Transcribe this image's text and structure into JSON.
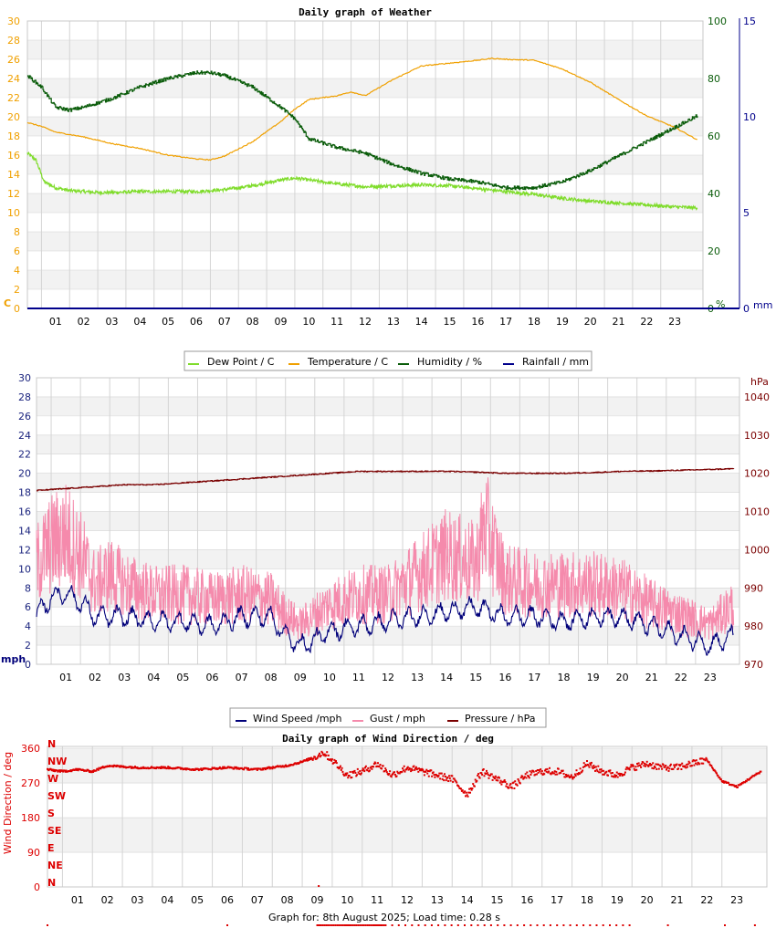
{
  "colors": {
    "dew": "#7fdc2b",
    "temp": "#f0a000",
    "hum": "#0a5c0a",
    "rain": "#00008b",
    "wind": "#00007a",
    "gust": "#f58aac",
    "press": "#7a0000",
    "dir": "#dd0000",
    "grid_band": "#f2f2f2",
    "grid_line": "#d4d4d4"
  },
  "footer": "Graph for: 8th August 2025; Load time: 0.28 s",
  "chart_data": [
    {
      "type": "line",
      "title": "Daily graph of Weather",
      "x_ticks": [
        "01",
        "02",
        "03",
        "04",
        "05",
        "06",
        "07",
        "08",
        "09",
        "10",
        "11",
        "12",
        "13",
        "14",
        "15",
        "16",
        "17",
        "18",
        "19",
        "20",
        "21",
        "22",
        "23"
      ],
      "xlim": [
        0,
        24
      ],
      "y_left": {
        "unit_label": "C",
        "ticks": [
          "0",
          "2",
          "4",
          "6",
          "8",
          "10",
          "12",
          "14",
          "16",
          "18",
          "20",
          "22",
          "24",
          "26",
          "28",
          "30"
        ],
        "ylim": [
          0,
          30
        ]
      },
      "y_right_1": {
        "unit_label": "%",
        "ticks": [
          "0",
          "20",
          "40",
          "60",
          "80",
          "100"
        ],
        "ylim": [
          0,
          100
        ]
      },
      "y_right_2": {
        "unit_label": "mm",
        "ticks": [
          "0",
          "5",
          "10",
          "15"
        ],
        "ylim": [
          0,
          15
        ]
      },
      "legend": [
        "Dew Point / C",
        "Temperature / C",
        "Humidity / %",
        "Rainfall / mm"
      ],
      "series": [
        {
          "name": "Dew Point / C",
          "axis": "left",
          "color_key": "dew",
          "x": [
            0,
            0.3,
            0.6,
            1,
            1.5,
            2,
            2.5,
            3,
            4,
            5,
            6,
            7,
            8,
            9,
            9.5,
            10,
            11,
            12,
            13,
            14,
            15,
            16,
            17,
            18,
            19,
            20,
            21,
            22,
            23,
            23.8
          ],
          "y": [
            16.2,
            15.5,
            13.2,
            12.6,
            12.3,
            12.2,
            12.1,
            12.1,
            12.2,
            12.2,
            12.2,
            12.4,
            12.8,
            13.4,
            13.6,
            13.4,
            13.0,
            12.7,
            12.8,
            12.9,
            12.8,
            12.5,
            12.2,
            11.9,
            11.5,
            11.2,
            11.0,
            10.8,
            10.6,
            10.5
          ]
        },
        {
          "name": "Temperature / C",
          "axis": "left",
          "color_key": "temp",
          "x": [
            0,
            0.5,
            1,
            2,
            3,
            4,
            5,
            6,
            6.5,
            7,
            8,
            9,
            9.5,
            10,
            11,
            11.5,
            12,
            13,
            14,
            15,
            16,
            16.5,
            17,
            18,
            19,
            20,
            21,
            22,
            23,
            23.8
          ],
          "y": [
            19.4,
            19.0,
            18.4,
            17.9,
            17.2,
            16.7,
            16.0,
            15.6,
            15.5,
            15.9,
            17.4,
            19.5,
            20.8,
            21.8,
            22.2,
            22.6,
            22.2,
            23.9,
            25.3,
            25.6,
            25.9,
            26.1,
            26.0,
            25.9,
            25.0,
            23.6,
            21.8,
            20.1,
            18.9,
            17.6
          ]
        },
        {
          "name": "Humidity / %",
          "axis": "right_1",
          "color_key": "hum",
          "x": [
            0,
            0.5,
            1,
            1.5,
            2,
            3,
            4,
            5,
            6,
            6.5,
            7,
            8,
            9,
            9.5,
            10,
            11,
            12,
            13,
            14,
            15,
            16,
            17,
            18,
            19,
            20,
            21,
            22,
            23,
            23.8
          ],
          "y": [
            81,
            77,
            70,
            69,
            70,
            73,
            77,
            80,
            82,
            82,
            81,
            77,
            70,
            66,
            59,
            56,
            54,
            50,
            47,
            45,
            44,
            42,
            42,
            44,
            48,
            53,
            58,
            63,
            67
          ]
        },
        {
          "name": "Rainfall / mm",
          "axis": "right_2",
          "color_key": "rain",
          "x": [
            0,
            23.8
          ],
          "y": [
            0,
            0
          ]
        }
      ]
    },
    {
      "type": "line",
      "title": "",
      "x_ticks": [
        "01",
        "02",
        "03",
        "04",
        "05",
        "06",
        "07",
        "08",
        "09",
        "10",
        "11",
        "12",
        "13",
        "14",
        "15",
        "16",
        "17",
        "18",
        "19",
        "20",
        "21",
        "22",
        "23"
      ],
      "xlim": [
        0,
        24
      ],
      "y_left": {
        "unit_label": "mph",
        "ticks": [
          "0",
          "2",
          "4",
          "6",
          "8",
          "10",
          "12",
          "14",
          "16",
          "18",
          "20",
          "22",
          "24",
          "26",
          "28",
          "30"
        ],
        "ylim": [
          0,
          30
        ]
      },
      "y_right": {
        "unit_label": "hPa",
        "ticks": [
          "970",
          "980",
          "990",
          "1000",
          "1010",
          "1020",
          "1030",
          "1040"
        ],
        "ylim": [
          970,
          1045
        ]
      },
      "legend": [
        "Wind Speed /mph",
        "Gust / mph",
        "Pressure / hPa"
      ],
      "series": [
        {
          "name": "Wind Speed /mph",
          "axis": "left",
          "color_key": "wind",
          "x": [
            0,
            0.5,
            1,
            1.5,
            2,
            2.5,
            3,
            4,
            5,
            6,
            7,
            8,
            8.5,
            9,
            9.5,
            10,
            11,
            12,
            13,
            14,
            15,
            16,
            17,
            18,
            19,
            20,
            21,
            22,
            22.5,
            23,
            23.8
          ],
          "y": [
            5,
            7,
            7.5,
            6.5,
            5,
            5,
            5,
            4.5,
            4.5,
            4,
            5,
            5,
            3,
            2,
            2.5,
            3.5,
            4,
            4.5,
            5,
            5.5,
            6,
            5,
            5,
            4.5,
            5,
            5,
            4,
            3,
            2.5,
            2,
            3
          ]
        },
        {
          "name": "Gust / mph",
          "axis": "left",
          "color_key": "gust",
          "x": [
            0,
            0.5,
            1,
            1.5,
            2,
            2.5,
            3,
            4,
            5,
            6,
            7,
            8,
            8.5,
            9,
            9.5,
            10,
            11,
            12,
            13,
            14,
            15,
            15.3,
            16,
            17,
            18,
            19,
            20,
            21,
            22,
            22.5,
            23,
            23.8
          ],
          "y": [
            10,
            12,
            13,
            11,
            8,
            9,
            8,
            7,
            7,
            6.5,
            7,
            6.5,
            5,
            4,
            5,
            6,
            7,
            7,
            9,
            11,
            10,
            14,
            8.5,
            8,
            8,
            8,
            7.5,
            6,
            5,
            4.5,
            4,
            6
          ]
        },
        {
          "name": "Pressure / hPa",
          "axis": "right",
          "color_key": "press",
          "x": [
            0,
            1,
            2,
            3,
            4,
            5,
            6,
            7,
            8,
            9,
            10,
            11,
            12,
            13,
            14,
            15,
            16,
            17,
            18,
            19,
            20,
            21,
            22,
            23,
            23.8
          ],
          "y": [
            1015.5,
            1016,
            1016.5,
            1017,
            1017,
            1017.5,
            1018,
            1018.5,
            1019,
            1019.5,
            1020,
            1020.5,
            1020.5,
            1020.5,
            1020.5,
            1020.3,
            1020,
            1020,
            1020,
            1020.2,
            1020.5,
            1020.6,
            1020.8,
            1021,
            1021.2
          ]
        }
      ]
    },
    {
      "type": "scatter",
      "title": "Daily graph of Wind Direction / deg",
      "x_ticks": [
        "01",
        "02",
        "03",
        "04",
        "05",
        "06",
        "07",
        "08",
        "09",
        "10",
        "11",
        "12",
        "13",
        "14",
        "15",
        "16",
        "17",
        "18",
        "19",
        "20",
        "21",
        "22",
        "23"
      ],
      "xlim": [
        0,
        24
      ],
      "y_left": {
        "label": "Wind Direction / deg",
        "ticks": [
          "0",
          "90",
          "180",
          "270",
          "360"
        ],
        "ylim": [
          0,
          365
        ]
      },
      "compass": [
        "N",
        "NE",
        "E",
        "SE",
        "S",
        "SW",
        "W",
        "NW",
        "N"
      ],
      "series": [
        {
          "name": "Wind Direction / deg",
          "color_key": "dir",
          "x": [
            0,
            0.5,
            1,
            1.5,
            2,
            3,
            4,
            5,
            6,
            7,
            8,
            8.5,
            9,
            9.2,
            9.5,
            10,
            10.5,
            11,
            11.5,
            12,
            12.5,
            13,
            13.5,
            14,
            14.5,
            15,
            15.5,
            16,
            16.5,
            17,
            17.5,
            18,
            18.5,
            19,
            19.5,
            20,
            20.5,
            21,
            21.5,
            22,
            22.5,
            23,
            23.8
          ],
          "y": [
            305,
            300,
            305,
            300,
            315,
            310,
            310,
            305,
            310,
            305,
            315,
            325,
            340,
            350,
            330,
            290,
            300,
            320,
            290,
            310,
            300,
            290,
            280,
            240,
            300,
            280,
            260,
            290,
            300,
            300,
            285,
            320,
            300,
            290,
            310,
            320,
            310,
            310,
            320,
            330,
            275,
            260,
            300
          ]
        }
      ]
    }
  ]
}
